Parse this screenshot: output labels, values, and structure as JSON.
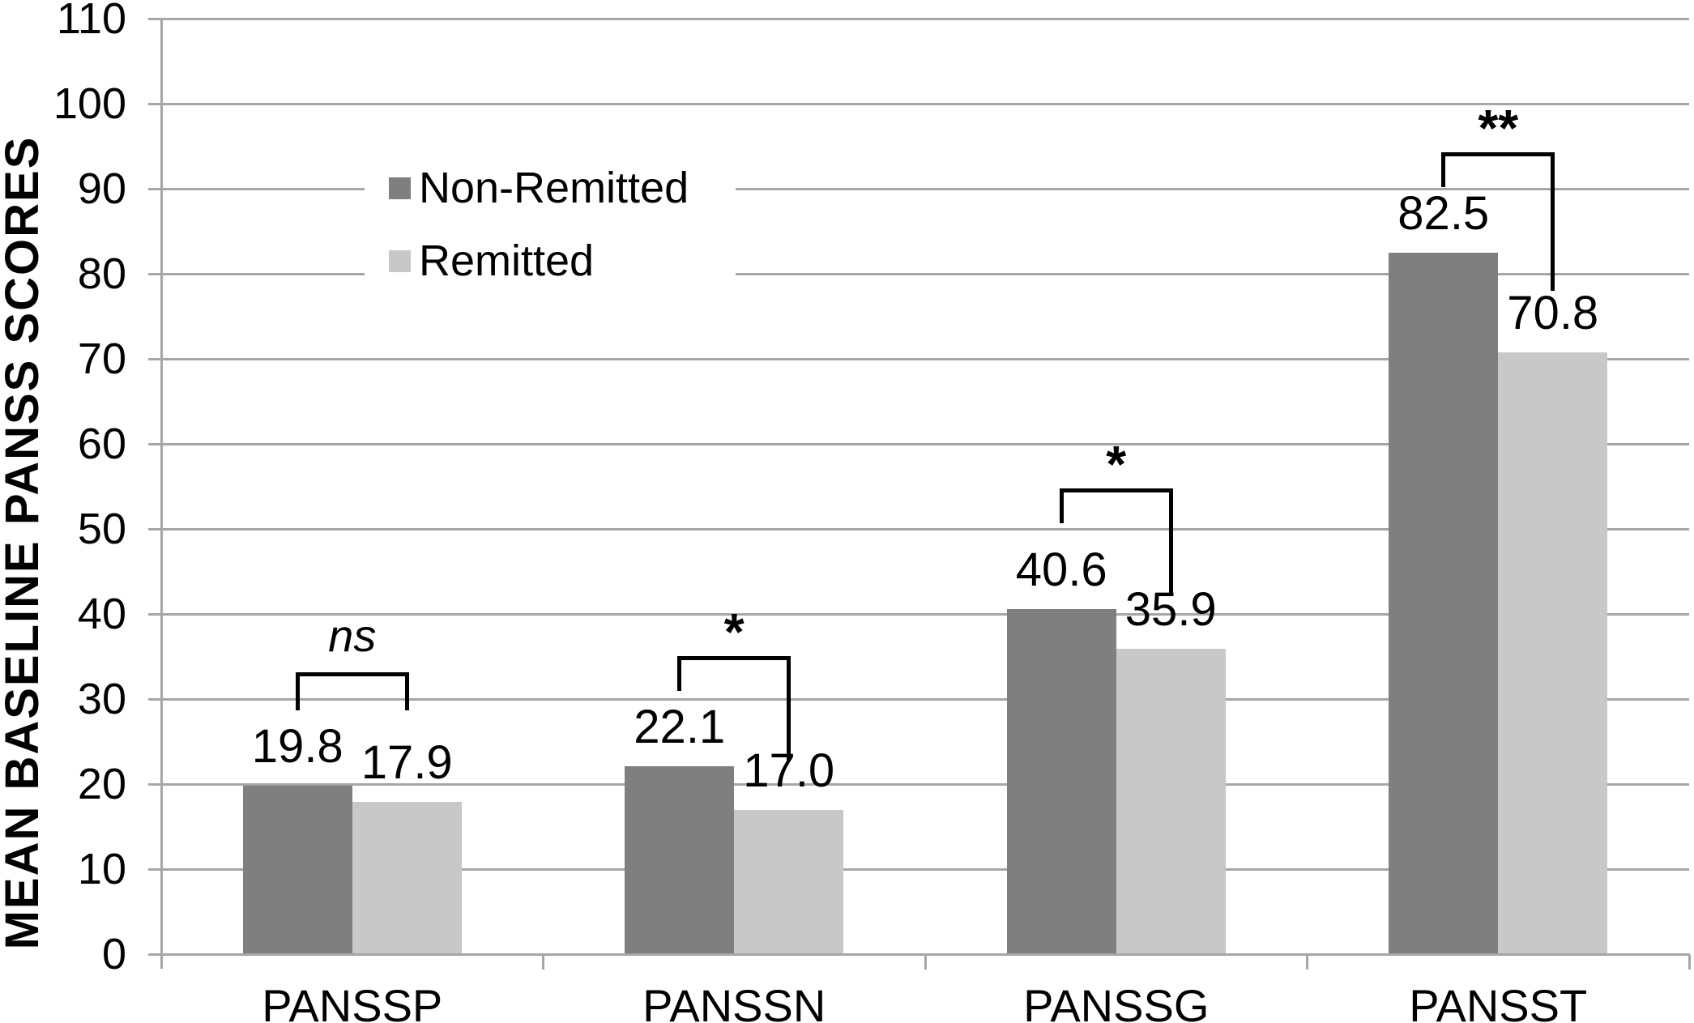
{
  "chart_data": {
    "type": "bar",
    "title": "",
    "ylabel": "MEAN BASELINE PANSS SCORES",
    "xlabel": "",
    "categories": [
      "PANSSP",
      "PANSSN",
      "PANSSG",
      "PANSST"
    ],
    "series": [
      {
        "name": "Non-Remitted",
        "color": "#7f7f7f",
        "values": [
          19.8,
          22.1,
          40.6,
          82.5
        ]
      },
      {
        "name": "Remitted",
        "color": "#c8c8c8",
        "values": [
          17.9,
          17.0,
          35.9,
          70.8
        ]
      }
    ],
    "value_labels": [
      [
        "19.8",
        "22.1",
        "40.6",
        "82.5"
      ],
      [
        "17.9",
        "17.0",
        "35.9",
        "70.8"
      ]
    ],
    "ylim": [
      0,
      110
    ],
    "yticks": [
      0,
      10,
      20,
      30,
      40,
      50,
      60,
      70,
      80,
      90,
      100,
      110
    ],
    "grid": true,
    "legend_position": "upper-left-inside",
    "annotations": [
      {
        "label": "ns",
        "italic": true,
        "category": "PANSSP"
      },
      {
        "label": "*",
        "italic": false,
        "category": "PANSSN"
      },
      {
        "label": "*",
        "italic": false,
        "category": "PANSSG"
      },
      {
        "label": "**",
        "italic": false,
        "category": "PANSST"
      }
    ],
    "colors": {
      "gridline": "#a6a6a6",
      "axis": "#a6a6a6",
      "bracket": "#000000",
      "text": "#000000",
      "background": "#ffffff"
    }
  }
}
